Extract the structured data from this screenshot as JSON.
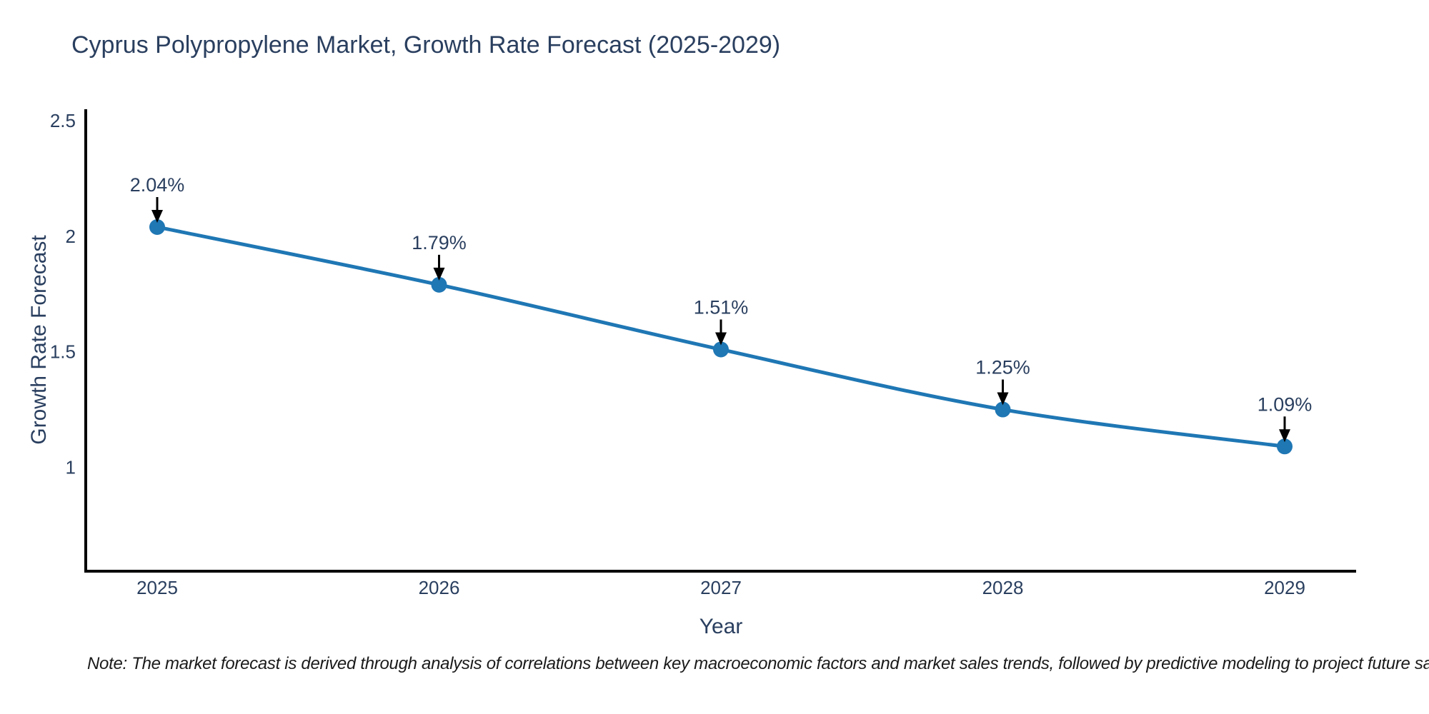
{
  "chart_data": {
    "type": "line",
    "title": "Cyprus Polypropylene Market, Growth Rate Forecast (2025-2029)",
    "xlabel": "Year",
    "ylabel": "Growth Rate Forecast",
    "x": [
      2025,
      2026,
      2027,
      2028,
      2029
    ],
    "series": [
      {
        "name": "Growth Rate Forecast",
        "values": [
          2.04,
          1.79,
          1.51,
          1.25,
          1.09
        ],
        "point_labels": [
          "2.04%",
          "1.79%",
          "1.51%",
          "1.25%",
          "1.09%"
        ]
      }
    ],
    "yticks": [
      1,
      1.5,
      2,
      2.5
    ],
    "ytick_labels": [
      "1",
      "1.5",
      "2",
      "2.5"
    ],
    "ylim": [
      0.55,
      2.55
    ],
    "grid": false,
    "legend_position": "none",
    "colors": {
      "line": "#1f77b4",
      "marker": "#1f77b4",
      "axis_line": "#000000",
      "title_text": "#2a3f5f",
      "tick_text": "#2a3f5f",
      "annotation_text": "#2a3f5f",
      "annotation_arrow": "#000000",
      "note_text": "#1a1a1a",
      "background": "#ffffff"
    },
    "note": "Note: The market forecast is derived through analysis of correlations between key macroeconomic factors and market sales trends, followed by predictive modeling to project future sales"
  }
}
